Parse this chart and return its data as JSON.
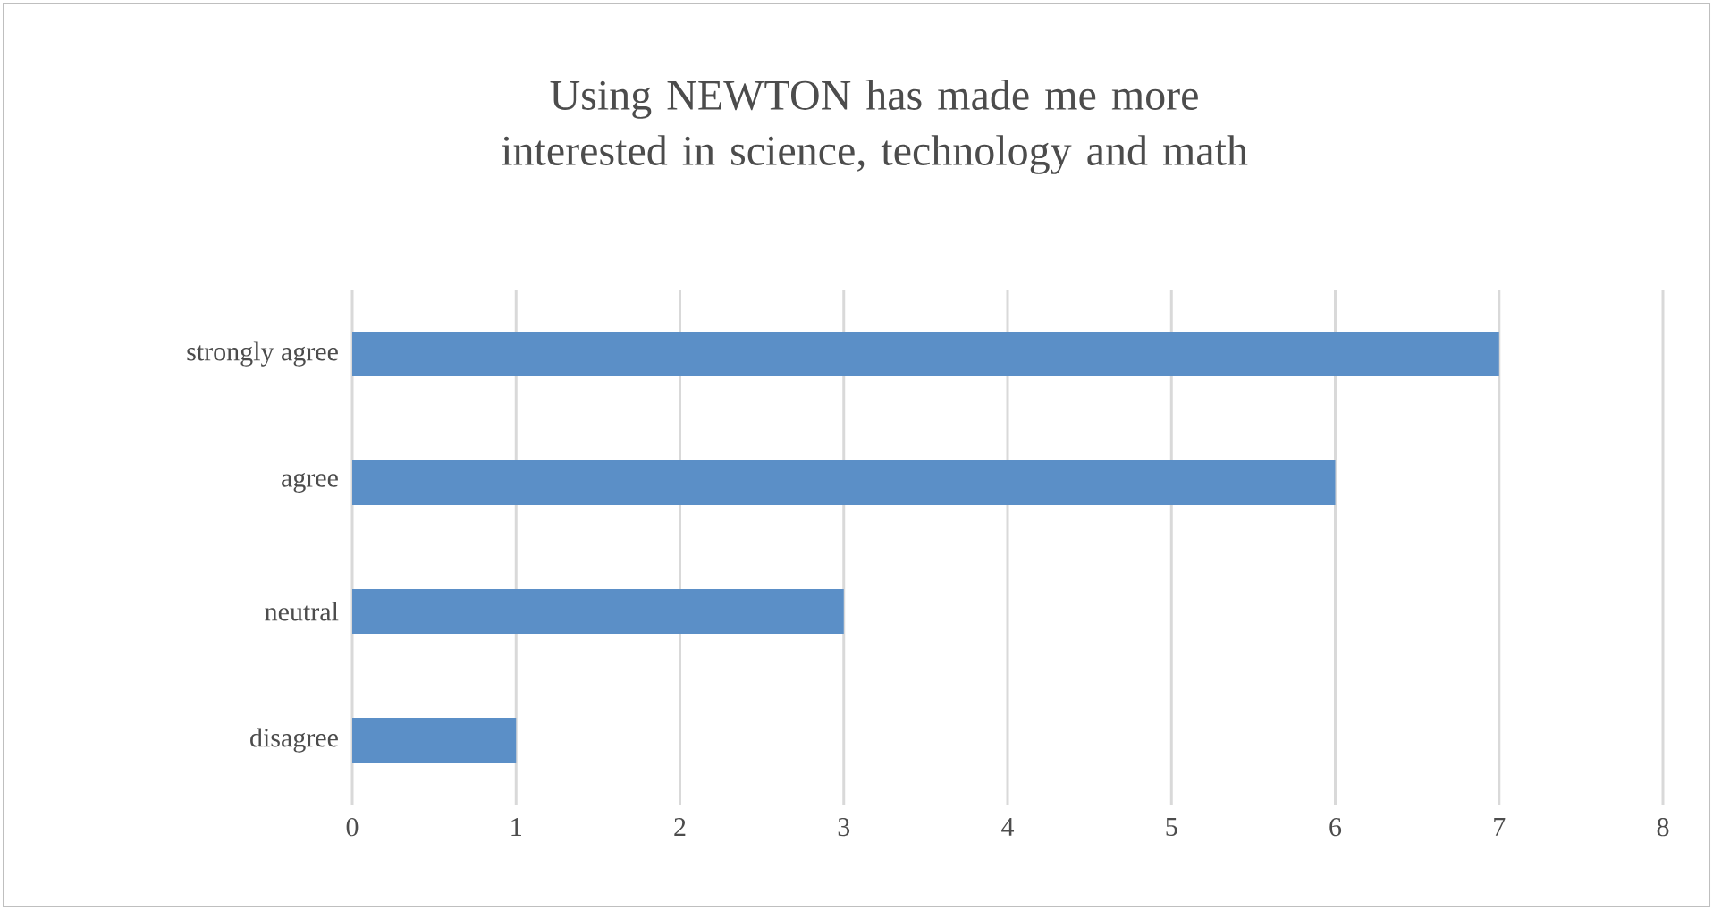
{
  "chart_data": {
    "type": "bar",
    "title": "Using NEWTON has made me more interested in science, technology and math",
    "orientation": "horizontal",
    "categories": [
      "strongly agree",
      "agree",
      "neutral",
      "disagree"
    ],
    "values": [
      7,
      6,
      3,
      1
    ],
    "color": "#5b8fc7",
    "xlim": [
      0,
      8
    ],
    "xticks": [
      0,
      1,
      2,
      3,
      4,
      5,
      6,
      7,
      8
    ],
    "grid": "x"
  }
}
